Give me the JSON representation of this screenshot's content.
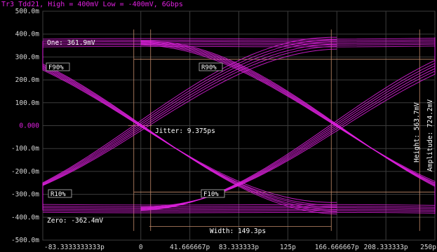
{
  "title": "Tr3 Tdd21, High = 400mV Low = -400mV, 6Gbps",
  "colors": {
    "background": "#000000",
    "trace": "#e020e0",
    "grid": "#3c3c3c",
    "marker": "#c28a6a",
    "text": "#ffffff",
    "title": "#e020e0"
  },
  "chart_data": {
    "type": "eye-diagram",
    "title": "Tr3 Tdd21, High = 400mV Low = -400mV, 6Gbps",
    "xlim": [
      -83.3333333333,
      250
    ],
    "ylim": [
      -0.5,
      0.5
    ],
    "x_ticks": [
      {
        "value": -83.3333333333,
        "label": "-83.3333333333p"
      },
      {
        "value": 0,
        "label": "0"
      },
      {
        "value": 41.666667,
        "label": "41.666667p"
      },
      {
        "value": 83.333333,
        "label": "83.333333p"
      },
      {
        "value": 125,
        "label": "125p"
      },
      {
        "value": 166.666667,
        "label": "166.666667p"
      },
      {
        "value": 208.333333,
        "label": "208.333333p"
      },
      {
        "value": 250,
        "label": "250p"
      }
    ],
    "y_ticks": [
      {
        "value": 0.5,
        "label": "500.0m"
      },
      {
        "value": 0.4,
        "label": "400.0m"
      },
      {
        "value": 0.3,
        "label": "300.0m"
      },
      {
        "value": 0.2,
        "label": "200.0m"
      },
      {
        "value": 0.1,
        "label": "100.0m"
      },
      {
        "value": 0.0,
        "label": "0.000"
      },
      {
        "value": -0.1,
        "label": "-100.0m"
      },
      {
        "value": -0.2,
        "label": "-200.0m"
      },
      {
        "value": -0.3,
        "label": "-300.0m"
      },
      {
        "value": -0.4,
        "label": "-400.0m"
      },
      {
        "value": -0.5,
        "label": "-500.0m"
      }
    ],
    "grid": true,
    "levels": {
      "one": 0.3619,
      "zero": -0.3624
    },
    "crossings_ps": [
      0,
      166.666667
    ],
    "markers": [
      {
        "label": "F90%",
        "x": -83.3333333333,
        "y": 0.29
      },
      {
        "label": "R90%",
        "x": 83.333333,
        "y": 0.29
      },
      {
        "label": "R10%",
        "x": -83.3333333333,
        "y": -0.29
      },
      {
        "label": "F10%",
        "x": 83.333333,
        "y": -0.29
      }
    ],
    "measurements": {
      "one": "One: 361.9mV",
      "zero": "Zero: -362.4mV",
      "jitter": "Jitter: 9.375ps",
      "width": "Width: 149.3ps",
      "height": "Height: 563.7mV",
      "amplitude": "Amplitude: 724.2mV"
    }
  }
}
